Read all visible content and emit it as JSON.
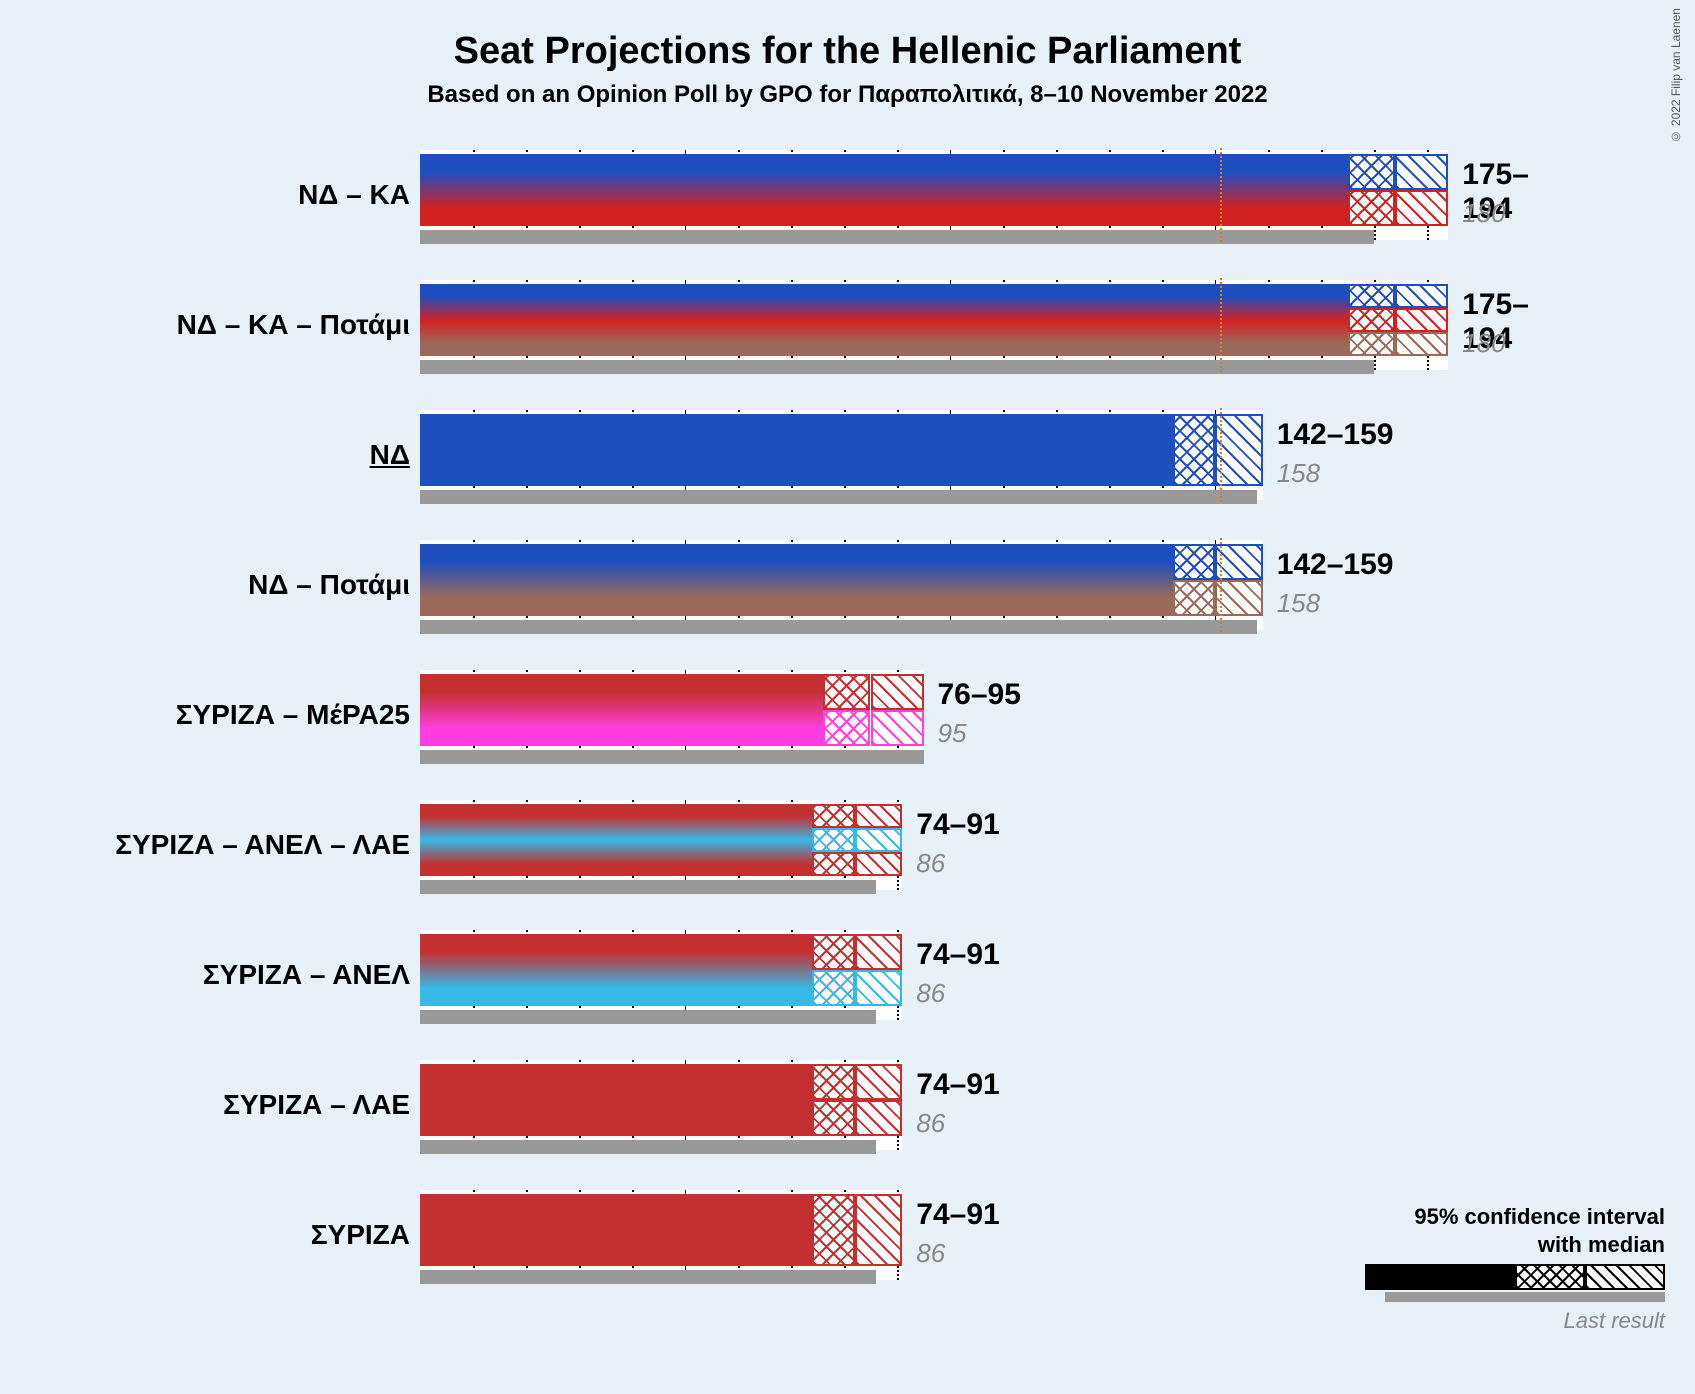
{
  "title": "Seat Projections for the Hellenic Parliament",
  "subtitle": "Based on an Opinion Poll by GPO for Παραπολιτικά, 8–10 November 2022",
  "copyright": "© 2022 Filip van Laenen",
  "title_fontsize": 38,
  "subtitle_fontsize": 24,
  "label_fontsize": 28,
  "value_fontsize": 30,
  "last_fontsize": 26,
  "legend_fontsize": 22,
  "chart": {
    "type": "bar",
    "x_max": 200,
    "grid_major_step": 50,
    "grid_minor_step": 10,
    "majority_threshold": 151,
    "row_bg_color": "#ffffff",
    "last_result_color": "#999999",
    "majority_color": "#d4802b",
    "rows": [
      {
        "label": "ΝΔ – ΚΑ",
        "underline": false,
        "range_text": "175–194",
        "last_text": "180",
        "low": 175,
        "median": 184,
        "high": 194,
        "last": 180,
        "colors": [
          "#1f4fbf",
          "#d32121"
        ],
        "show_majority": true
      },
      {
        "label": "ΝΔ – ΚΑ – Ποτάμι",
        "underline": false,
        "range_text": "175–194",
        "last_text": "180",
        "low": 175,
        "median": 184,
        "high": 194,
        "last": 180,
        "colors": [
          "#1f4fbf",
          "#d32121",
          "#9c6a5a"
        ],
        "show_majority": true
      },
      {
        "label": "ΝΔ",
        "underline": true,
        "range_text": "142–159",
        "last_text": "158",
        "low": 142,
        "median": 150,
        "high": 159,
        "last": 158,
        "colors": [
          "#1f4fbf"
        ],
        "show_majority": true
      },
      {
        "label": "ΝΔ – Ποτάμι",
        "underline": false,
        "range_text": "142–159",
        "last_text": "158",
        "low": 142,
        "median": 150,
        "high": 159,
        "last": 158,
        "colors": [
          "#1f4fbf",
          "#9c6a5a"
        ],
        "show_majority": true
      },
      {
        "label": "ΣΥΡΙΖΑ – ΜέΡΑ25",
        "underline": false,
        "range_text": "76–95",
        "last_text": "95",
        "low": 76,
        "median": 85,
        "high": 95,
        "last": 95,
        "colors": [
          "#c43030",
          "#ff3de0"
        ],
        "show_majority": false
      },
      {
        "label": "ΣΥΡΙΖΑ – ΑΝΕΛ – ΛΑΕ",
        "underline": false,
        "range_text": "74–91",
        "last_text": "86",
        "low": 74,
        "median": 82,
        "high": 91,
        "last": 86,
        "colors": [
          "#c43030",
          "#37b9e6",
          "#c43030"
        ],
        "show_majority": false
      },
      {
        "label": "ΣΥΡΙΖΑ – ΑΝΕΛ",
        "underline": false,
        "range_text": "74–91",
        "last_text": "86",
        "low": 74,
        "median": 82,
        "high": 91,
        "last": 86,
        "colors": [
          "#c43030",
          "#37b9e6"
        ],
        "show_majority": false
      },
      {
        "label": "ΣΥΡΙΖΑ – ΛΑΕ",
        "underline": false,
        "range_text": "74–91",
        "last_text": "86",
        "low": 74,
        "median": 82,
        "high": 91,
        "last": 86,
        "colors": [
          "#c43030",
          "#c43030"
        ],
        "show_majority": false
      },
      {
        "label": "ΣΥΡΙΖΑ",
        "underline": false,
        "range_text": "74–91",
        "last_text": "86",
        "low": 74,
        "median": 82,
        "high": 91,
        "last": 86,
        "colors": [
          "#c43030"
        ],
        "show_majority": false
      }
    ]
  },
  "legend": {
    "line1": "95% confidence interval",
    "line2": "with median",
    "last_label": "Last result"
  }
}
